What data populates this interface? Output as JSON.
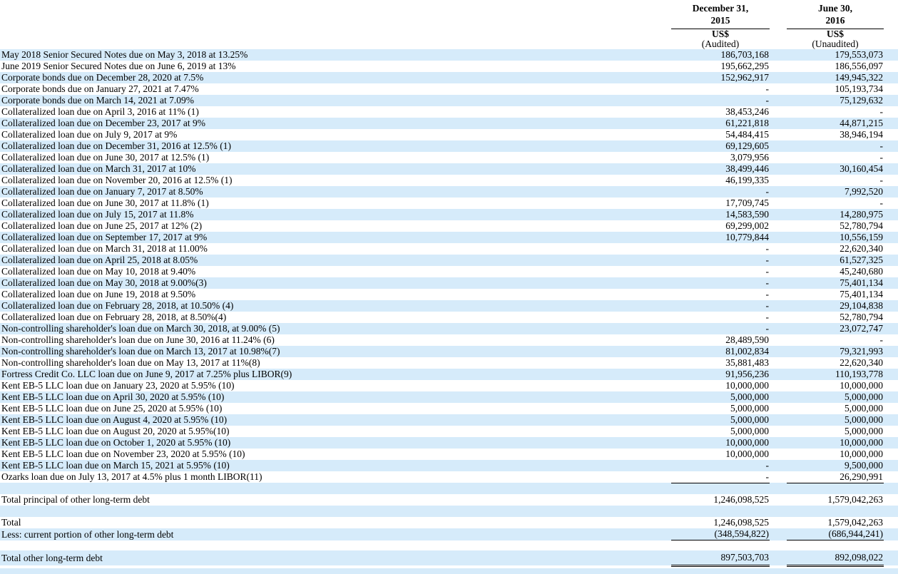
{
  "colors": {
    "row_shade": "#d6ebfa",
    "text": "#000000",
    "rule": "#000000"
  },
  "table": {
    "columns": [
      {
        "date_line1": "December 31,",
        "date_line2": "2015",
        "currency": "US$",
        "audit": "(Audited)"
      },
      {
        "date_line1": "June 30,",
        "date_line2": "2016",
        "currency": "US$",
        "audit": "(Unaudited)"
      }
    ],
    "rows": [
      {
        "label": "May 2018 Senior Secured Notes due on May 3, 2018 at 13.25%",
        "v2015": "186,703,168",
        "v2016": "179,553,073",
        "shaded": true
      },
      {
        "label": "June 2019 Senior Secured Notes due on June 6, 2019 at 13%",
        "v2015": "195,662,295",
        "v2016": "186,556,097",
        "shaded": false
      },
      {
        "label": "Corporate bonds due on December 28, 2020 at 7.5%",
        "v2015": "152,962,917",
        "v2016": "149,945,322",
        "shaded": true
      },
      {
        "label": "Corporate bonds due on January 27, 2021 at 7.47%",
        "v2015": "-",
        "v2016": "105,193,734",
        "shaded": false
      },
      {
        "label": "Corporate bonds due on March 14, 2021 at 7.09%",
        "v2015": "-",
        "v2016": "75,129,632",
        "shaded": true
      },
      {
        "label": "Collateralized loan due on April 3, 2016 at 11% (1)",
        "v2015": "38,453,246",
        "v2016": "-",
        "shaded": false
      },
      {
        "label": "Collateralized loan due on December 23, 2017 at 9%",
        "v2015": "61,221,818",
        "v2016": "44,871,215",
        "shaded": true
      },
      {
        "label": "Collateralized loan due on July 9, 2017 at 9%",
        "v2015": "54,484,415",
        "v2016": "38,946,194",
        "shaded": false
      },
      {
        "label": "Collateralized loan due on December 31, 2016 at 12.5% (1)",
        "v2015": "69,129,605",
        "v2016": "-",
        "shaded": true
      },
      {
        "label": "Collateralized loan due on June 30, 2017 at 12.5% (1)",
        "v2015": "3,079,956",
        "v2016": "-",
        "shaded": false
      },
      {
        "label": "Collateralized loan due on March 31, 2017 at 10%",
        "v2015": "38,499,446",
        "v2016": "30,160,454",
        "shaded": true
      },
      {
        "label": "Collateralized loan due on November 20, 2016 at 12.5% (1)",
        "v2015": "46,199,335",
        "v2016": "-",
        "shaded": false
      },
      {
        "label": "Collateralized loan due on January 7, 2017 at 8.50%",
        "v2015": "-",
        "v2016": "7,992,520",
        "shaded": true
      },
      {
        "label": "Collateralized loan due on June 30, 2017 at 11.8% (1)",
        "v2015": "17,709,745",
        "v2016": "-",
        "shaded": false
      },
      {
        "label": "Collateralized loan due on July 15, 2017 at 11.8%",
        "v2015": "14,583,590",
        "v2016": "14,280,975",
        "shaded": true
      },
      {
        "label": "Collateralized loan due on June 25, 2017 at 12% (2)",
        "v2015": "69,299,002",
        "v2016": "52,780,794",
        "shaded": false
      },
      {
        "label": "Collateralized loan due on September 17, 2017 at 9%",
        "v2015": "10,779,844",
        "v2016": "10,556,159",
        "shaded": true
      },
      {
        "label": "Collateralized loan due on March 31, 2018 at 11.00%",
        "v2015": "-",
        "v2016": "22,620,340",
        "shaded": false
      },
      {
        "label": "Collateralized loan due on April 25, 2018 at 8.05%",
        "v2015": "-",
        "v2016": "61,527,325",
        "shaded": true
      },
      {
        "label": "Collateralized loan due on May 10, 2018 at 9.40%",
        "v2015": "-",
        "v2016": "45,240,680",
        "shaded": false
      },
      {
        "label": "Collateralized loan due on May 30, 2018 at 9.00%(3)",
        "v2015": "-",
        "v2016": "75,401,134",
        "shaded": true
      },
      {
        "label": "Collateralized loan due on June 19, 2018 at 9.50%",
        "v2015": "-",
        "v2016": "75,401,134",
        "shaded": false
      },
      {
        "label": "Collateralized loan due on February 28, 2018, at 10.50% (4)",
        "v2015": "-",
        "v2016": "29,104,838",
        "shaded": true
      },
      {
        "label": "Collateralized loan due on February 28, 2018, at 8.50%(4)",
        "v2015": "-",
        "v2016": "52,780,794",
        "shaded": false
      },
      {
        "label": "Non-controlling shareholder's loan due on March 30, 2018, at 9.00% (5)",
        "v2015": "-",
        "v2016": "23,072,747",
        "shaded": true
      },
      {
        "label": "Non-controlling shareholder's loan due on June 30, 2016 at 11.24% (6)",
        "v2015": "28,489,590",
        "v2016": "-",
        "shaded": false
      },
      {
        "label": "Non-controlling shareholder's loan due on March 13, 2017 at 10.98%(7)",
        "v2015": "81,002,834",
        "v2016": "79,321,993",
        "shaded": true
      },
      {
        "label": "Non-controlling shareholder's loan due on May 13, 2017 at 11%(8)",
        "v2015": "35,881,483",
        "v2016": "22,620,340",
        "shaded": false
      },
      {
        "label": "Fortress Credit Co. LLC loan due on June 9, 2017 at 7.25% plus LIBOR(9)",
        "v2015": "91,956,236",
        "v2016": "110,193,778",
        "shaded": true
      },
      {
        "label": "Kent EB-5 LLC loan due on January 23, 2020 at 5.95% (10)",
        "v2015": "10,000,000",
        "v2016": "10,000,000",
        "shaded": false
      },
      {
        "label": "Kent EB-5 LLC loan due on April 30, 2020 at 5.95% (10)",
        "v2015": "5,000,000",
        "v2016": "5,000,000",
        "shaded": true
      },
      {
        "label": "Kent EB-5 LLC loan due on June 25, 2020 at 5.95% (10)",
        "v2015": "5,000,000",
        "v2016": "5,000,000",
        "shaded": false
      },
      {
        "label": "Kent EB-5 LLC loan due on August 4, 2020 at 5.95% (10)",
        "v2015": "5,000,000",
        "v2016": "5,000,000",
        "shaded": true
      },
      {
        "label": "Kent EB-5 LLC loan due on August 20, 2020 at 5.95%(10)",
        "v2015": "5,000,000",
        "v2016": "5,000,000",
        "shaded": false
      },
      {
        "label": "Kent EB-5 LLC loan due on October 1, 2020 at 5.95% (10)",
        "v2015": "10,000,000",
        "v2016": "10,000,000",
        "shaded": true
      },
      {
        "label": "Kent EB-5 LLC loan due on November 23, 2020 at 5.95% (10)",
        "v2015": "10,000,000",
        "v2016": "10,000,000",
        "shaded": false
      },
      {
        "label": "Kent EB-5 LLC loan due on March 15, 2021 at 5.95% (10)",
        "v2015": "-",
        "v2016": "9,500,000",
        "shaded": true
      },
      {
        "label": "Ozarks loan due on July 13, 2017 at 4.5% plus 1 month LIBOR(11)",
        "v2015": "-",
        "v2016": "26,290,991",
        "shaded": false,
        "underline": "single"
      },
      {
        "label": "",
        "v2015": "",
        "v2016": "",
        "shaded": true
      },
      {
        "label": "Total principal of other long-term debt",
        "v2015": "1,246,098,525",
        "v2016": "1,579,042,263",
        "shaded": false
      },
      {
        "label": "",
        "v2015": "",
        "v2016": "",
        "shaded": true
      },
      {
        "label": "Total",
        "v2015": "1,246,098,525",
        "v2016": "1,579,042,263",
        "shaded": false
      },
      {
        "label": "Less: current portion of other long-term debt",
        "v2015": "(348,594,822)",
        "v2016": "(686,944,241)",
        "shaded": true,
        "underline": "single"
      },
      {
        "label": "",
        "v2015": "",
        "v2016": "",
        "shaded": false,
        "height": 14
      },
      {
        "label": "Total other long-term debt",
        "v2015": "897,503,703",
        "v2016": "892,098,022",
        "shaded": true,
        "underline": "double",
        "height": 20
      },
      {
        "label": "",
        "v2015": "",
        "v2016": "",
        "shaded": false,
        "height": 4
      },
      {
        "label": "",
        "v2015": "",
        "v2016": "",
        "shaded": true,
        "height": 8
      }
    ]
  }
}
